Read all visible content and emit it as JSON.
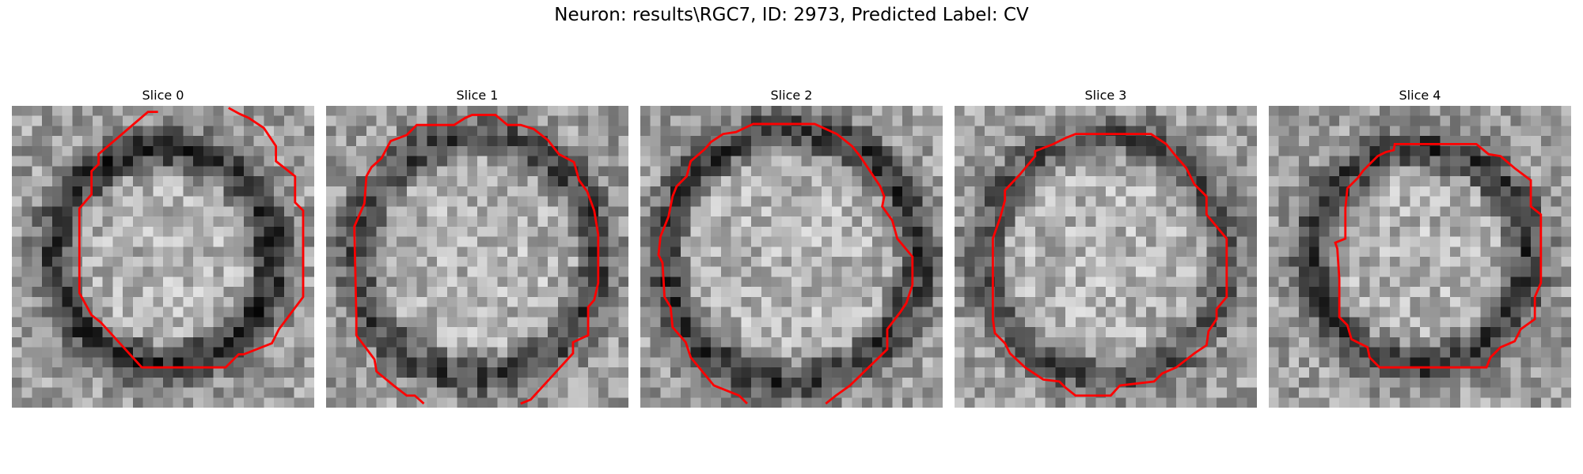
{
  "figure": {
    "title": "Neuron: results\\RGC7, ID: 2973, Predicted Label: CV"
  },
  "panels": [
    {
      "label": "Slice 0",
      "seed": 11,
      "ring_radius": 0.36,
      "ring_dark": 0.45,
      "outline": "#ff0000",
      "contour_shape": "octagon-tall"
    },
    {
      "label": "Slice 1",
      "seed": 23,
      "ring_radius": 0.4,
      "ring_dark": 0.35,
      "outline": "#ff0000",
      "contour_shape": "round-open-bottom"
    },
    {
      "label": "Slice 2",
      "seed": 37,
      "ring_radius": 0.42,
      "ring_dark": 0.4,
      "outline": "#ff0000",
      "contour_shape": "round-open-bottom"
    },
    {
      "label": "Slice 3",
      "seed": 41,
      "ring_radius": 0.4,
      "ring_dark": 0.3,
      "outline": "#ff0000",
      "contour_shape": "round-closed"
    },
    {
      "label": "Slice 4",
      "seed": 53,
      "ring_radius": 0.36,
      "ring_dark": 0.4,
      "outline": "#ff0000",
      "contour_shape": "round-small"
    }
  ]
}
